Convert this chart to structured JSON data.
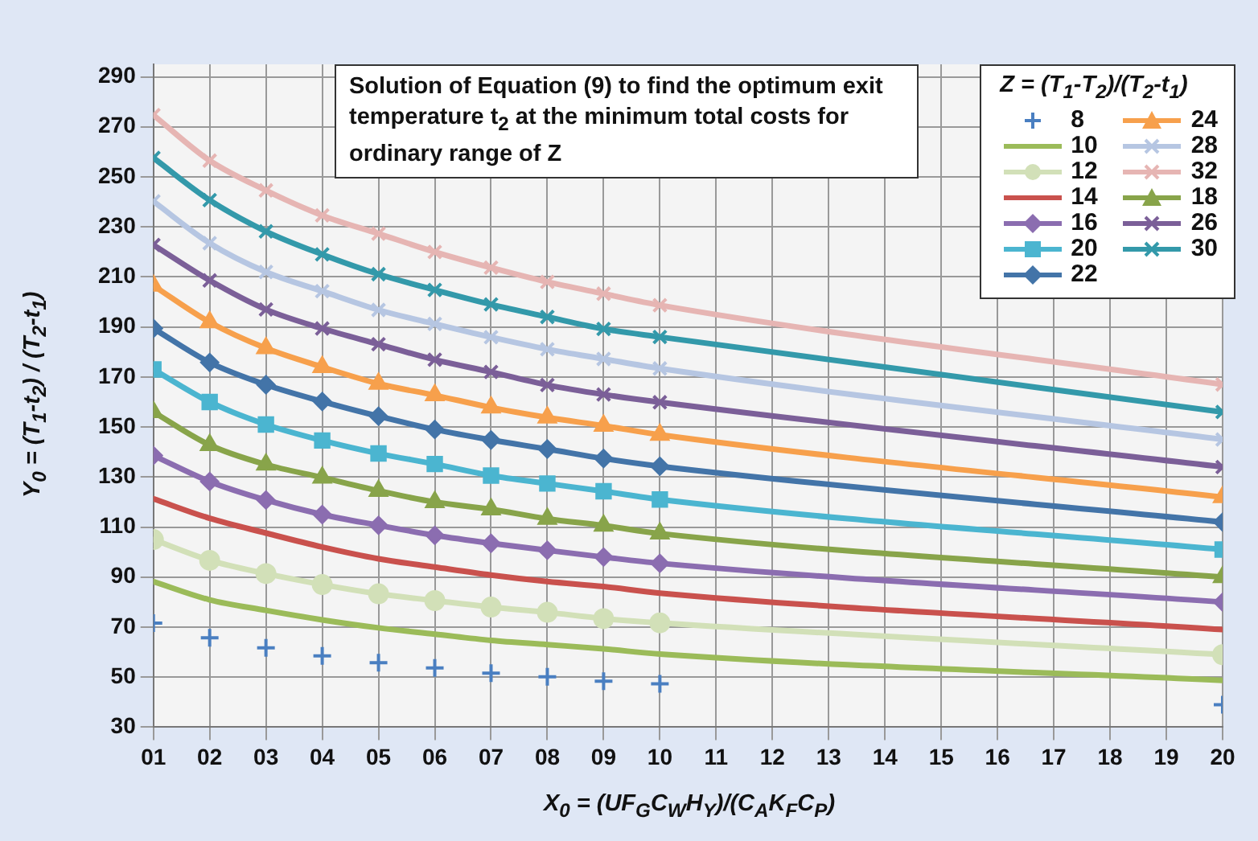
{
  "chart_data": {
    "type": "line",
    "title": "Solution of Equation (9) to find the optimum exit temperature t$_{2}$ at the minimum total costs for ordinary range of Z",
    "xlabel": "X$_{0}$ = (UF$_{G}$C$_{W}$H$_{Y}$)/(C$_{A}$K$_{F}$C$_{P}$)",
    "ylabel": "Y$_{0}$ = (T$_{1}$-t$_{2}$) / (T$_{2}$-t$_{1}$)",
    "legend_title": "Z = (T$_{1}$-T$_{2}$)/(T$_{2}$-t$_{1}$)",
    "legend": "top right",
    "grid": true,
    "x": [
      1,
      2,
      3,
      4,
      5,
      6,
      7,
      8,
      9,
      10,
      20
    ],
    "xlim": [
      1,
      20
    ],
    "xticks": [
      {
        "value": 1,
        "label": "01"
      },
      {
        "value": 2,
        "label": "02"
      },
      {
        "value": 3,
        "label": "03"
      },
      {
        "value": 4,
        "label": "04"
      },
      {
        "value": 5,
        "label": "05"
      },
      {
        "value": 6,
        "label": "06"
      },
      {
        "value": 7,
        "label": "07"
      },
      {
        "value": 8,
        "label": "08"
      },
      {
        "value": 9,
        "label": "09"
      },
      10,
      11,
      12,
      13,
      14,
      15,
      16,
      17,
      18,
      19,
      20
    ],
    "ylim": [
      30,
      295
    ],
    "yticks": [
      30,
      50,
      70,
      90,
      110,
      130,
      150,
      170,
      190,
      210,
      230,
      250,
      270,
      290
    ],
    "series": [
      {
        "name": "8",
        "type": "scatter",
        "marker": "cross",
        "color": "#4a7fc1",
        "values": [
          71.6,
          65.7,
          61.7,
          58.5,
          55.8,
          53.7,
          51.6,
          50.1,
          48.4,
          47.3,
          39
        ]
      },
      {
        "name": "10",
        "marker": "none",
        "color": "#9bbb59",
        "values": [
          88.2,
          80.9,
          76.7,
          72.9,
          69.7,
          67.2,
          64.7,
          63,
          61.3,
          59.2,
          48.7
        ]
      },
      {
        "name": "12",
        "marker": "circle",
        "color": "#d2e0b8",
        "values": [
          105,
          96.7,
          91.4,
          87,
          83.3,
          80.6,
          78,
          75.9,
          73.4,
          71.7,
          59
        ]
      },
      {
        "name": "14",
        "marker": "none",
        "color": "#c9514d",
        "values": [
          121.3,
          113.5,
          107.6,
          102,
          97.3,
          94,
          90.8,
          88.2,
          86.2,
          83.6,
          69
        ]
      },
      {
        "name": "16",
        "marker": "diamond",
        "color": "#8b6db0",
        "values": [
          138.6,
          128.2,
          120.8,
          115,
          110.7,
          106.7,
          103.5,
          100.7,
          98,
          95.5,
          80
        ]
      },
      {
        "name": "20",
        "marker": "square",
        "color": "#4bb5d0",
        "values": [
          173,
          160,
          151,
          144.6,
          139.4,
          135.2,
          130.6,
          127.4,
          124.3,
          121,
          101
        ]
      },
      {
        "name": "22",
        "marker": "diamond",
        "color": "#4374a8",
        "values": [
          189.4,
          175.8,
          166.9,
          160.2,
          154.3,
          149,
          144.8,
          141.2,
          137.4,
          134.3,
          112
        ]
      },
      {
        "name": "24",
        "marker": "triangle",
        "color": "#f7a04c",
        "values": [
          206.5,
          191.9,
          181.5,
          174,
          167.3,
          162.7,
          157.8,
          153.8,
          150.5,
          146.9,
          122
        ]
      },
      {
        "name": "28",
        "marker": "cross",
        "color": "#b6c6e2",
        "values": [
          240.2,
          223.5,
          212,
          204.3,
          196.8,
          191.2,
          185.9,
          181.1,
          177.2,
          173.4,
          145
        ]
      },
      {
        "name": "32",
        "marker": "cross",
        "color": "#e6b5b3",
        "values": [
          274.7,
          256.5,
          244.6,
          234.6,
          227.3,
          220,
          213.7,
          208,
          203.3,
          198.7,
          167
        ]
      },
      {
        "name": "18",
        "marker": "triangle",
        "color": "#88a44a",
        "values": [
          156,
          142.8,
          135,
          129.8,
          124.5,
          120,
          117.1,
          113.3,
          110.6,
          107.4,
          90
        ]
      },
      {
        "name": "26",
        "marker": "cross",
        "color": "#7b5f98",
        "values": [
          222.8,
          208.6,
          197,
          189.4,
          183.1,
          176.9,
          172,
          166.8,
          163,
          159.9,
          134
        ]
      },
      {
        "name": "30",
        "marker": "cross",
        "color": "#3399aa",
        "values": [
          257.6,
          240.7,
          228.2,
          219,
          211.1,
          204.8,
          199,
          194,
          189.2,
          186,
          156
        ]
      }
    ]
  }
}
